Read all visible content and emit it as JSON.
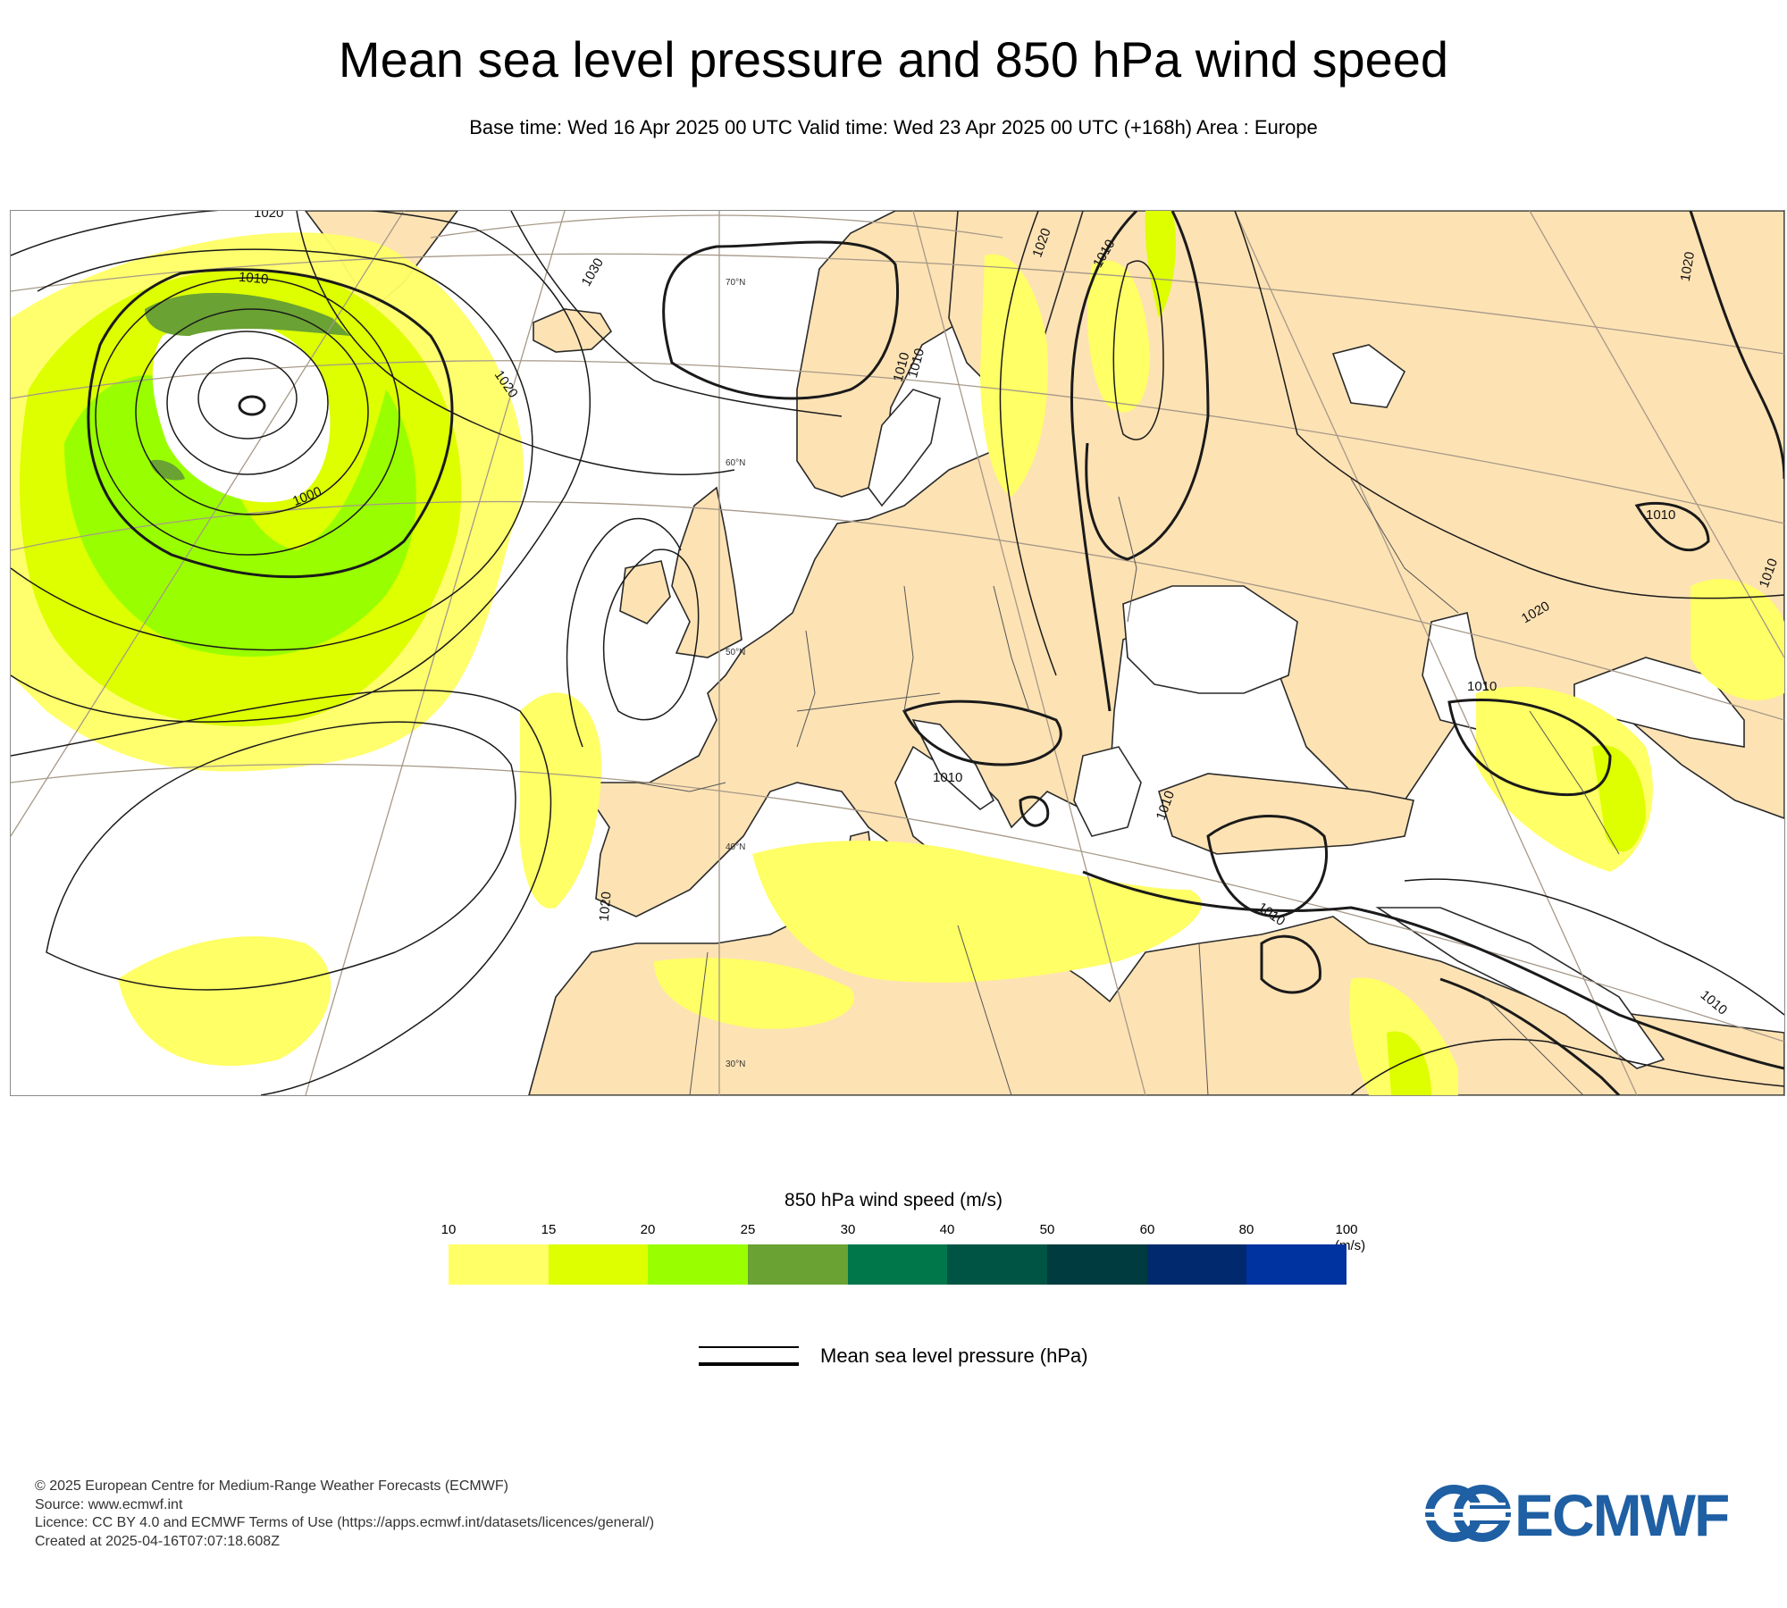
{
  "header": {
    "title": "Mean sea level pressure and 850 hPa wind speed",
    "subtitle": "Base time: Wed 16 Apr 2025 00 UTC Valid time: Wed 23 Apr 2025 00 UTC (+168h) Area : Europe"
  },
  "map": {
    "area": "Europe",
    "latitude_labels": [
      "70°N",
      "60°N",
      "50°N",
      "40°N",
      "30°N"
    ],
    "isobar_labels": [
      "1020",
      "1010",
      "1000",
      "1020",
      "1030",
      "1020",
      "1010",
      "1010",
      "1010",
      "1020",
      "1010",
      "1010",
      "1010",
      "1010",
      "1020",
      "1010",
      "1020",
      "1010",
      "1010"
    ],
    "colors": {
      "land": "#fde2b4",
      "sea": "#ffffff",
      "coastline": "#2a2a2a",
      "border": "#555555",
      "graticule": "#a69988"
    }
  },
  "legend": {
    "title": "850 hPa wind speed (m/s)",
    "unit": "(m/s)",
    "ticks": [
      "10",
      "15",
      "20",
      "25",
      "30",
      "40",
      "50",
      "60",
      "80",
      "100"
    ],
    "colors": [
      "#ffff66",
      "#ddff00",
      "#99ff00",
      "#6aa233",
      "#00774b",
      "#005444",
      "#003b3f",
      "#002a6d",
      "#0033a0"
    ],
    "mslp_label": "Mean sea level pressure (hPa)"
  },
  "footer": {
    "lines": [
      "© 2025 European Centre for Medium-Range Weather Forecasts (ECMWF)",
      "Source: www.ecmwf.int",
      "Licence: CC BY 4.0 and ECMWF Terms of Use (https://apps.ecmwf.int/datasets/licences/general/)",
      "Created at 2025-04-16T07:07:18.608Z"
    ],
    "logo_text": "ECMWF",
    "logo_color": "#1f5fa3"
  }
}
